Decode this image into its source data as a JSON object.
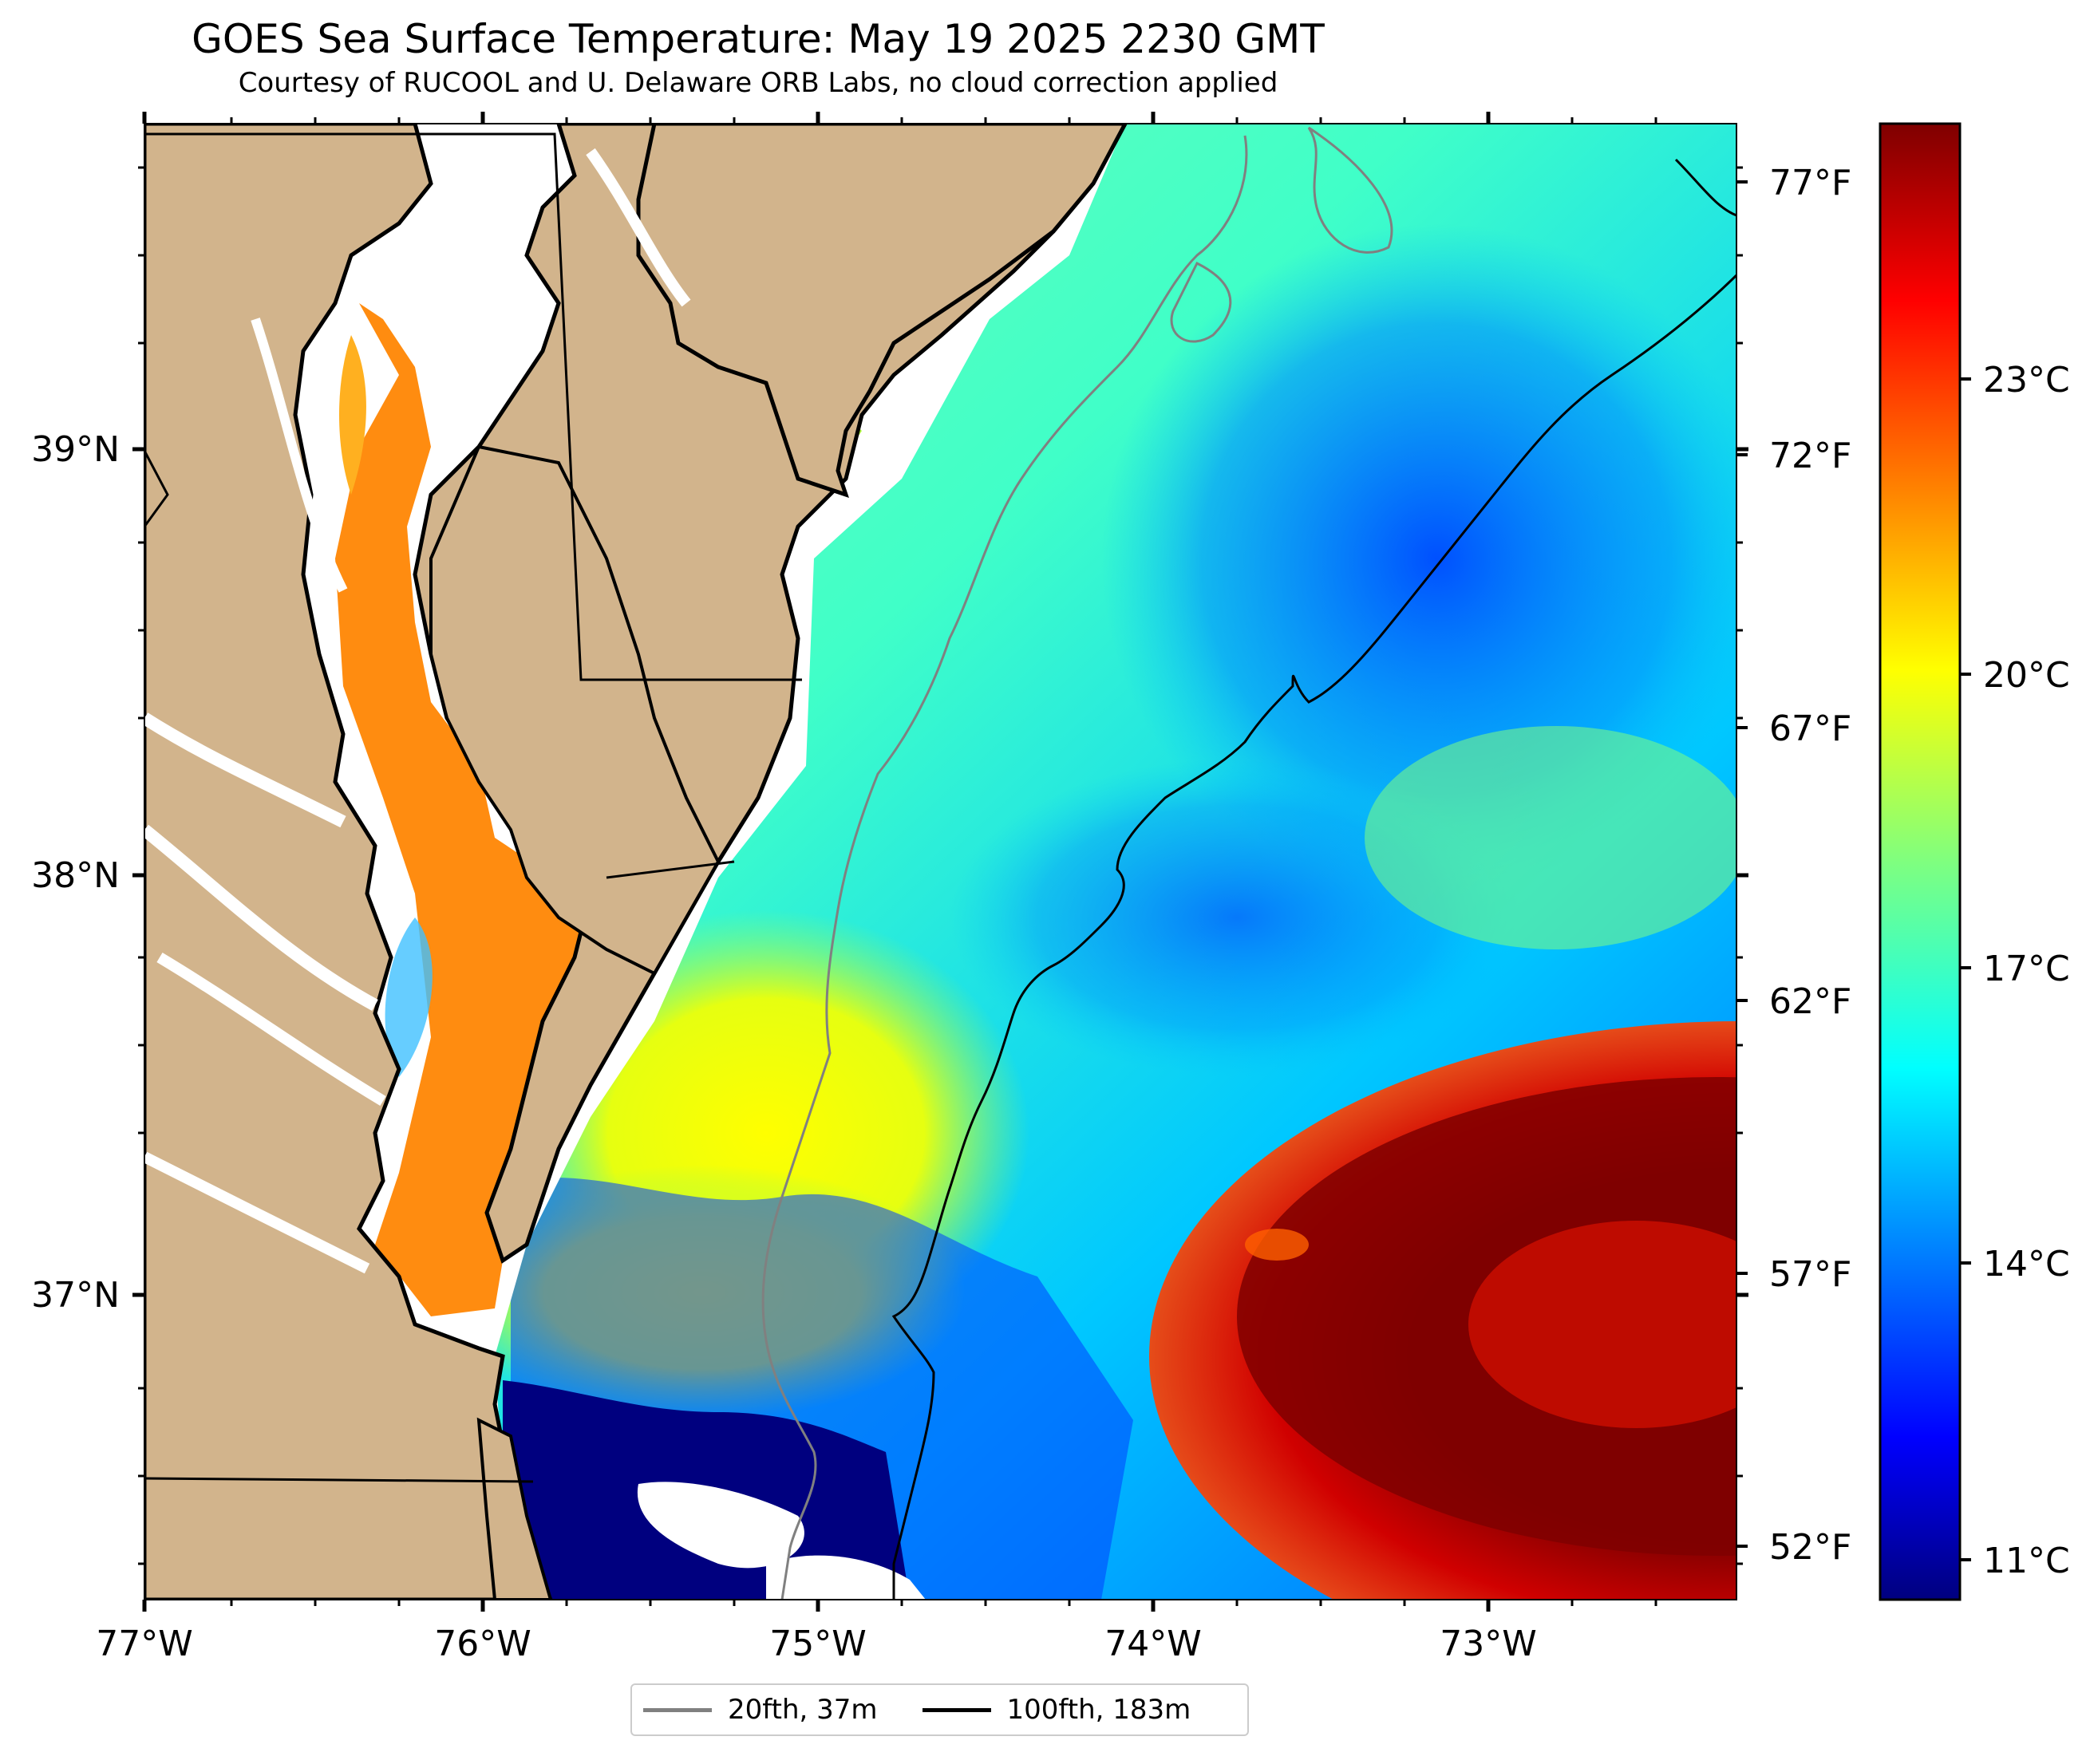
{
  "title": "GOES Sea Surface Temperature: May 19 2025 2230 GMT",
  "subtitle": "Courtesy of RUCOOL and U. Delaware ORB Labs, no cloud correction applied",
  "map": {
    "lon_ticks": [
      "77°W",
      "76°W",
      "75°W",
      "74°W",
      "73°W"
    ],
    "lat_ticks": [
      "39°N",
      "38°N",
      "37°N"
    ],
    "fahrenheit_ticks": [
      "77°F",
      "72°F",
      "67°F",
      "62°F",
      "57°F",
      "52°F"
    ]
  },
  "colorbar": {
    "celsius_ticks": [
      "23°C",
      "20°C",
      "17°C",
      "14°C",
      "11°C"
    ],
    "colormap": "jet",
    "range_celsius": [
      10.5,
      25.5
    ]
  },
  "legend": {
    "items": [
      {
        "label": "20fth, 37m",
        "color": "#808080"
      },
      {
        "label": "100fth, 183m",
        "color": "#000000"
      }
    ]
  },
  "colors": {
    "land": "#D2B48C",
    "coast_gap": "#FFFFFF",
    "deep_cold": "#00007F",
    "warm_core": "#7F0000"
  }
}
